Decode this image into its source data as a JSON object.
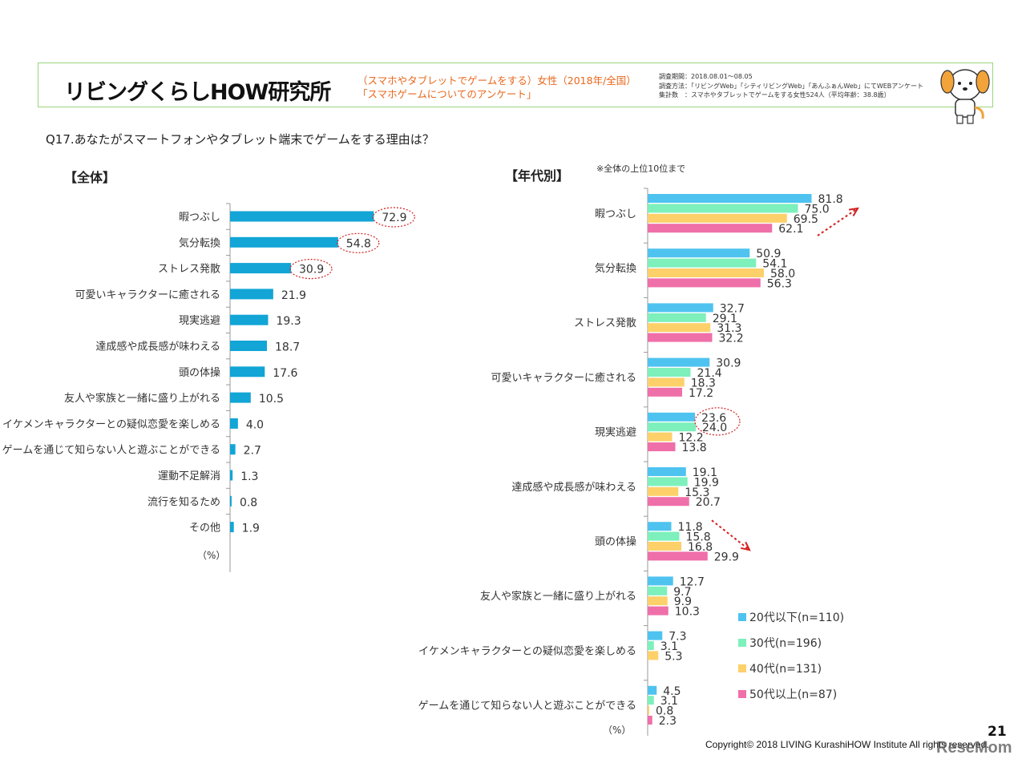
{
  "header": {
    "logo": "リビングくらしHOW研究所",
    "survey_line1": "（スマホやタブレットでゲームをする）女性（2018年/全国）",
    "survey_line2": "「スマホゲームについてのアンケート」",
    "meta_line1": "調査期間：2018.08.01～08.05",
    "meta_line2": "調査方法：「リビングWeb」「シティリビングWeb」「あんふぁんWeb」にてWEBアンケート",
    "meta_line3": "集計数　：スマホやタブレットでゲームをする女性524人（平均年齢：38.8歳）"
  },
  "question": "Q17.あなたがスマートフォンやタブレット端末でゲームをする理由は？",
  "left_section_label": "【全体】",
  "right_section_label": "【年代別】",
  "right_note": "※全体の上位10位まで",
  "page_number": "21",
  "copyright": "Copyright© 2018 LIVING KurashiHOW Institute All rights reserved.",
  "watermark": "ReseMom",
  "chart_data": [
    {
      "type": "bar",
      "orientation": "horizontal",
      "title": "【全体】",
      "unit": "（%）",
      "categories": [
        "暇つぶし",
        "気分転換",
        "ストレス発散",
        "可愛いキャラクターに癒される",
        "現実逃避",
        "達成感や成長感が味わえる",
        "頭の体操",
        "友人や家族と一緒に盛り上がれる",
        "イケメンキャラクターとの疑似恋愛を楽しめる",
        "ゲームを通じて知らない人と遊ぶことができる",
        "運動不足解消",
        "流行を知るため",
        "その他"
      ],
      "values": [
        72.9,
        54.8,
        30.9,
        21.9,
        19.3,
        18.7,
        17.6,
        10.5,
        4.0,
        2.7,
        1.3,
        0.8,
        1.9
      ],
      "value_labels": [
        "72.9",
        "54.8",
        "30.9",
        "21.9",
        "19.3",
        "18.7",
        "17.6",
        "10.5",
        "4.0",
        "2.7",
        "1.3",
        "0.8",
        "1.9"
      ],
      "circled": [
        0,
        1,
        2
      ],
      "color": "#12a5d6"
    },
    {
      "type": "bar",
      "orientation": "horizontal",
      "title": "【年代別】",
      "unit": "（%）",
      "categories": [
        "暇つぶし",
        "気分転換",
        "ストレス発散",
        "可愛いキャラクターに癒される",
        "現実逃避",
        "達成感や成長感が味わえる",
        "頭の体操",
        "友人や家族と一緒に盛り上がれる",
        "イケメンキャラクターとの疑似恋愛を楽しめる",
        "ゲームを通じて知らない人と遊ぶことができる"
      ],
      "series": [
        {
          "name": "20代以下(n=110)",
          "color": "#4fc3f0",
          "values": [
            81.8,
            50.9,
            32.7,
            30.9,
            23.6,
            19.1,
            11.8,
            12.7,
            7.3,
            4.5
          ],
          "labels": [
            "81.8",
            "50.9",
            "32.7",
            "30.9",
            "23.6",
            "19.1",
            "11.8",
            "12.7",
            "7.3",
            "4.5"
          ]
        },
        {
          "name": "30代(n=196)",
          "color": "#7df0bc",
          "values": [
            75.0,
            54.1,
            29.1,
            21.4,
            24.0,
            19.9,
            15.8,
            9.7,
            3.1,
            3.1
          ],
          "labels": [
            "75.0",
            "54.1",
            "29.1",
            "21.4",
            "24.0",
            "19.9",
            "15.8",
            "9.7",
            "3.1",
            "3.1"
          ]
        },
        {
          "name": "40代(n=131)",
          "color": "#fdd06a",
          "values": [
            69.5,
            58.0,
            31.3,
            18.3,
            12.2,
            15.3,
            16.8,
            9.9,
            5.3,
            0.8
          ],
          "labels": [
            "69.5",
            "58.0",
            "31.3",
            "18.3",
            "12.2",
            "15.3",
            "16.8",
            "9.9",
            "5.3",
            "0.8"
          ]
        },
        {
          "name": "50代以上(n=87)",
          "color": "#ef6fa9",
          "values": [
            62.1,
            56.3,
            32.2,
            17.2,
            13.8,
            20.7,
            29.9,
            10.3,
            0.0,
            2.3
          ],
          "labels": [
            "62.1",
            "56.3",
            "32.2",
            "17.2",
            "13.8",
            "20.7",
            "29.9",
            "10.3",
            "",
            "2.3"
          ]
        }
      ],
      "circled": {
        "category": 4,
        "series": [
          0,
          1
        ]
      },
      "trend_arrows": [
        0,
        6
      ]
    }
  ]
}
